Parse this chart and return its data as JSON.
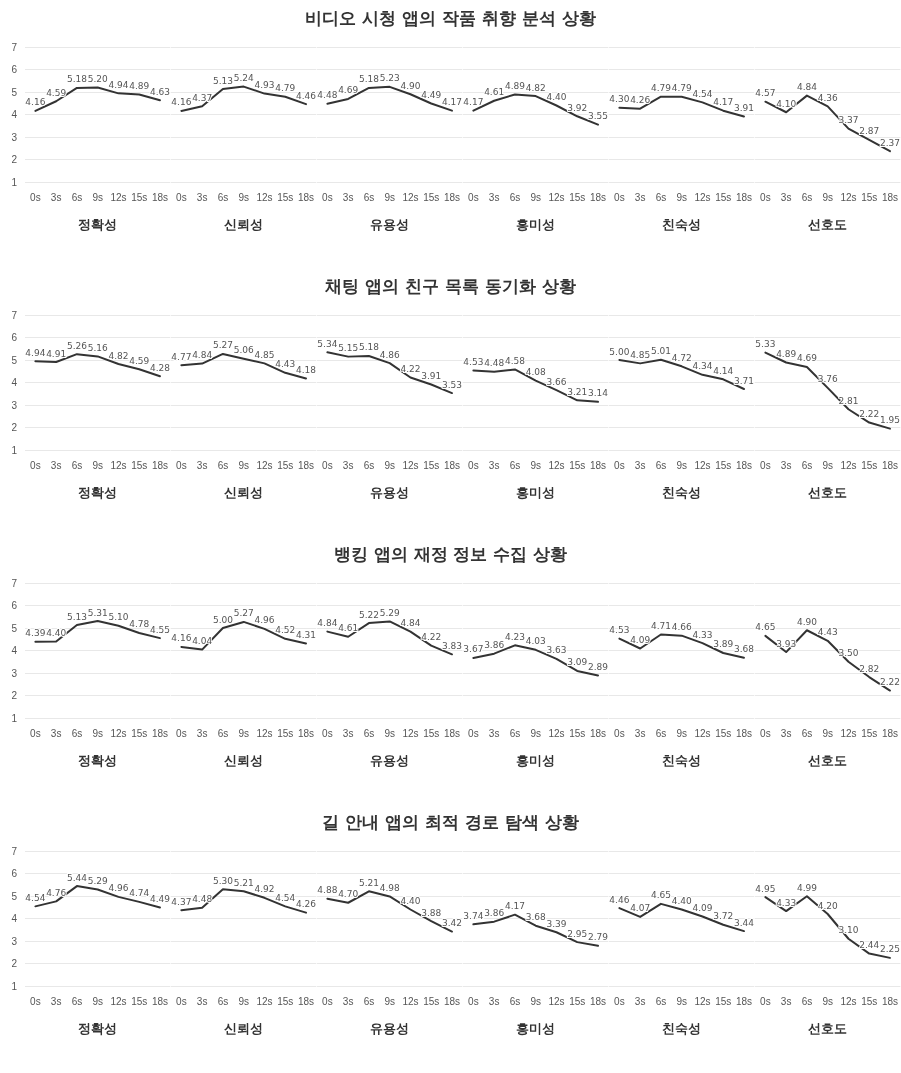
{
  "chart_data": [
    {
      "type": "other",
      "title": "비디오 시청 앱의 작품 취향 분석 상황"
    },
    {
      "type": "line",
      "xlabel": "정확성",
      "categories": [
        "0s",
        "3s",
        "6s",
        "9s",
        "12s",
        "15s",
        "18s"
      ],
      "series": [
        {
          "color": "#333333",
          "values": [
            4.16,
            4.59,
            5.18,
            5.2,
            4.94,
            4.89,
            4.63
          ],
          "value_labels": [
            "4.16",
            "4.59",
            "5.18",
            "5.20",
            "4.94",
            "4.89",
            "4.63"
          ]
        }
      ],
      "ylim": [
        1,
        7
      ],
      "yticks": [
        1,
        2,
        3,
        4,
        5,
        6,
        7
      ],
      "grid": "y",
      "marker": "none",
      "line_style": "solid"
    },
    {
      "type": "line",
      "xlabel": "신뢰성",
      "categories": [
        "0s",
        "3s",
        "6s",
        "9s",
        "12s",
        "15s",
        "18s"
      ],
      "series": [
        {
          "color": "#333333",
          "values": [
            4.16,
            4.37,
            5.13,
            5.24,
            4.93,
            4.79,
            4.46
          ],
          "value_labels": [
            "4.16",
            "4.37",
            "5.13",
            "5.24",
            "4.93",
            "4.79",
            "4.46"
          ]
        }
      ],
      "ylim": [
        1,
        7
      ],
      "yticks": [
        1,
        2,
        3,
        4,
        5,
        6,
        7
      ],
      "grid": "y",
      "tick_labels": "x",
      "marker": "none",
      "line_style": "solid"
    },
    {
      "type": "line",
      "xlabel": "유용성",
      "categories": [
        "0s",
        "3s",
        "6s",
        "9s",
        "12s",
        "15s",
        "18s"
      ],
      "series": [
        {
          "color": "#333333",
          "values": [
            4.48,
            4.69,
            5.18,
            5.23,
            4.9,
            4.49,
            4.17
          ],
          "value_labels": [
            "4.48",
            "4.69",
            "5.18",
            "5.23",
            "4.90",
            "4.49",
            "4.17"
          ]
        }
      ],
      "ylim": [
        1,
        7
      ],
      "yticks": [
        1,
        2,
        3,
        4,
        5,
        6,
        7
      ],
      "grid": "y",
      "tick_labels": "x",
      "marker": "none",
      "line_style": "solid"
    },
    {
      "type": "line",
      "xlabel": "흥미성",
      "categories": [
        "0s",
        "3s",
        "6s",
        "9s",
        "12s",
        "15s",
        "18s"
      ],
      "series": [
        {
          "color": "#333333",
          "values": [
            4.17,
            4.61,
            4.89,
            4.82,
            4.4,
            3.92,
            3.55
          ],
          "value_labels": [
            "4.17",
            "4.61",
            "4.89",
            "4.82",
            "4.40",
            "3.92",
            "3.55"
          ]
        }
      ],
      "ylim": [
        1,
        7
      ],
      "yticks": [
        1,
        2,
        3,
        4,
        5,
        6,
        7
      ],
      "grid": "y",
      "tick_labels": "x",
      "marker": "none",
      "line_style": "solid"
    },
    {
      "type": "line",
      "xlabel": "친숙성",
      "categories": [
        "0s",
        "3s",
        "6s",
        "9s",
        "12s",
        "15s",
        "18s"
      ],
      "series": [
        {
          "color": "#333333",
          "values": [
            4.3,
            4.26,
            4.79,
            4.79,
            4.54,
            4.17,
            3.91
          ],
          "value_labels": [
            "4.30",
            "4.26",
            "4.79",
            "4.79",
            "4.54",
            "4.17",
            "3.91"
          ]
        }
      ],
      "ylim": [
        1,
        7
      ],
      "yticks": [
        1,
        2,
        3,
        4,
        5,
        6,
        7
      ],
      "grid": "y",
      "tick_labels": "x",
      "marker": "none",
      "line_style": "solid"
    },
    {
      "type": "line",
      "xlabel": "선호도",
      "categories": [
        "0s",
        "3s",
        "6s",
        "9s",
        "12s",
        "15s",
        "18s"
      ],
      "series": [
        {
          "color": "#333333",
          "values": [
            4.57,
            4.1,
            4.84,
            4.36,
            3.37,
            2.87,
            2.37
          ],
          "value_labels": [
            "4.57",
            "4.10",
            "4.84",
            "4.36",
            "3.37",
            "2.87",
            "2.37"
          ]
        }
      ],
      "ylim": [
        1,
        7
      ],
      "yticks": [
        1,
        2,
        3,
        4,
        5,
        6,
        7
      ],
      "grid": "y",
      "tick_labels": "x",
      "marker": "none",
      "line_style": "solid"
    },
    {
      "type": "other",
      "title": "채팅 앱의 친구 목록 동기화 상황"
    },
    {
      "type": "line",
      "xlabel": "정확성",
      "categories": [
        "0s",
        "3s",
        "6s",
        "9s",
        "12s",
        "15s",
        "18s"
      ],
      "series": [
        {
          "color": "#333333",
          "values": [
            4.94,
            4.91,
            5.26,
            5.16,
            4.82,
            4.59,
            4.28
          ],
          "value_labels": [
            "4.94",
            "4.91",
            "5.26",
            "5.16",
            "4.82",
            "4.59",
            "4.28"
          ]
        }
      ],
      "ylim": [
        1,
        7
      ],
      "yticks": [
        1,
        2,
        3,
        4,
        5,
        6,
        7
      ],
      "grid": "y",
      "marker": "none",
      "line_style": "solid"
    },
    {
      "type": "line",
      "xlabel": "신뢰성",
      "categories": [
        "0s",
        "3s",
        "6s",
        "9s",
        "12s",
        "15s",
        "18s"
      ],
      "series": [
        {
          "color": "#333333",
          "values": [
            4.77,
            4.84,
            5.27,
            5.06,
            4.85,
            4.43,
            4.18
          ],
          "value_labels": [
            "4.77",
            "4.84",
            "5.27",
            "5.06",
            "4.85",
            "4.43",
            "4.18"
          ]
        }
      ],
      "ylim": [
        1,
        7
      ],
      "yticks": [
        1,
        2,
        3,
        4,
        5,
        6,
        7
      ],
      "grid": "y",
      "tick_labels": "x",
      "marker": "none",
      "line_style": "solid"
    },
    {
      "type": "line",
      "xlabel": "유용성",
      "categories": [
        "0s",
        "3s",
        "6s",
        "9s",
        "12s",
        "15s",
        "18s"
      ],
      "series": [
        {
          "color": "#333333",
          "values": [
            5.34,
            5.15,
            5.18,
            4.86,
            4.22,
            3.91,
            3.53
          ],
          "value_labels": [
            "5.34",
            "5.15",
            "5.18",
            "4.86",
            "4.22",
            "3.91",
            "3.53"
          ]
        }
      ],
      "ylim": [
        1,
        7
      ],
      "yticks": [
        1,
        2,
        3,
        4,
        5,
        6,
        7
      ],
      "grid": "y",
      "tick_labels": "x",
      "marker": "none",
      "line_style": "solid"
    },
    {
      "type": "line",
      "xlabel": "흥미성",
      "categories": [
        "0s",
        "3s",
        "6s",
        "9s",
        "12s",
        "15s",
        "18s"
      ],
      "series": [
        {
          "color": "#333333",
          "values": [
            4.53,
            4.48,
            4.58,
            4.08,
            3.66,
            3.21,
            3.14
          ],
          "value_labels": [
            "4.53",
            "4.48",
            "4.58",
            "4.08",
            "3.66",
            "3.21",
            "3.14"
          ]
        }
      ],
      "ylim": [
        1,
        7
      ],
      "yticks": [
        1,
        2,
        3,
        4,
        5,
        6,
        7
      ],
      "grid": "y",
      "tick_labels": "x",
      "marker": "none",
      "line_style": "solid"
    },
    {
      "type": "line",
      "xlabel": "친숙성",
      "categories": [
        "0s",
        "3s",
        "6s",
        "9s",
        "12s",
        "15s",
        "18s"
      ],
      "series": [
        {
          "color": "#333333",
          "values": [
            5.0,
            4.85,
            5.01,
            4.72,
            4.34,
            4.14,
            3.71
          ],
          "value_labels": [
            "5.00",
            "4.85",
            "5.01",
            "4.72",
            "4.34",
            "4.14",
            "3.71"
          ]
        }
      ],
      "ylim": [
        1,
        7
      ],
      "yticks": [
        1,
        2,
        3,
        4,
        5,
        6,
        7
      ],
      "grid": "y",
      "tick_labels": "x",
      "marker": "none",
      "line_style": "solid"
    },
    {
      "type": "line",
      "xlabel": "선호도",
      "categories": [
        "0s",
        "3s",
        "6s",
        "9s",
        "12s",
        "15s",
        "18s"
      ],
      "series": [
        {
          "color": "#333333",
          "values": [
            5.33,
            4.89,
            4.69,
            3.76,
            2.81,
            2.22,
            1.95
          ],
          "value_labels": [
            "5.33",
            "4.89",
            "4.69",
            "3.76",
            "2.81",
            "2.22",
            "1.95"
          ]
        }
      ],
      "ylim": [
        1,
        7
      ],
      "yticks": [
        1,
        2,
        3,
        4,
        5,
        6,
        7
      ],
      "grid": "y",
      "tick_labels": "x",
      "marker": "none",
      "line_style": "solid"
    },
    {
      "type": "other",
      "title": "뱅킹 앱의 재정 정보 수집 상황"
    },
    {
      "type": "line",
      "xlabel": "정확성",
      "categories": [
        "0s",
        "3s",
        "6s",
        "9s",
        "12s",
        "15s",
        "18s"
      ],
      "series": [
        {
          "color": "#333333",
          "values": [
            4.39,
            4.4,
            5.13,
            5.31,
            5.1,
            4.78,
            4.55
          ],
          "value_labels": [
            "4.39",
            "4.40",
            "5.13",
            "5.31",
            "5.10",
            "4.78",
            "4.55"
          ]
        }
      ],
      "ylim": [
        1,
        7
      ],
      "yticks": [
        1,
        2,
        3,
        4,
        5,
        6,
        7
      ],
      "grid": "y",
      "marker": "none",
      "line_style": "solid"
    },
    {
      "type": "line",
      "xlabel": "신뢰성",
      "categories": [
        "0s",
        "3s",
        "6s",
        "9s",
        "12s",
        "15s",
        "18s"
      ],
      "series": [
        {
          "color": "#333333",
          "values": [
            4.16,
            4.04,
            5.0,
            5.27,
            4.96,
            4.52,
            4.31
          ],
          "value_labels": [
            "4.16",
            "4.04",
            "5.00",
            "5.27",
            "4.96",
            "4.52",
            "4.31"
          ]
        }
      ],
      "ylim": [
        1,
        7
      ],
      "yticks": [
        1,
        2,
        3,
        4,
        5,
        6,
        7
      ],
      "grid": "y",
      "tick_labels": "x",
      "marker": "none",
      "line_style": "solid"
    },
    {
      "type": "line",
      "xlabel": "유용성",
      "categories": [
        "0s",
        "3s",
        "6s",
        "9s",
        "12s",
        "15s",
        "18s"
      ],
      "series": [
        {
          "color": "#333333",
          "values": [
            4.84,
            4.61,
            5.22,
            5.29,
            4.84,
            4.22,
            3.83
          ],
          "value_labels": [
            "4.84",
            "4.61",
            "5.22",
            "5.29",
            "4.84",
            "4.22",
            "3.83"
          ]
        }
      ],
      "ylim": [
        1,
        7
      ],
      "yticks": [
        1,
        2,
        3,
        4,
        5,
        6,
        7
      ],
      "grid": "y",
      "tick_labels": "x",
      "marker": "none",
      "line_style": "solid"
    },
    {
      "type": "line",
      "xlabel": "흥미성",
      "categories": [
        "0s",
        "3s",
        "6s",
        "9s",
        "12s",
        "15s",
        "18s"
      ],
      "series": [
        {
          "color": "#333333",
          "values": [
            3.67,
            3.86,
            4.23,
            4.03,
            3.63,
            3.09,
            2.89
          ],
          "value_labels": [
            "3.67",
            "3.86",
            "4.23",
            "4.03",
            "3.63",
            "3.09",
            "2.89"
          ]
        }
      ],
      "ylim": [
        1,
        7
      ],
      "yticks": [
        1,
        2,
        3,
        4,
        5,
        6,
        7
      ],
      "grid": "y",
      "tick_labels": "x",
      "marker": "none",
      "line_style": "solid"
    },
    {
      "type": "line",
      "xlabel": "친숙성",
      "categories": [
        "0s",
        "3s",
        "6s",
        "9s",
        "12s",
        "15s",
        "18s"
      ],
      "series": [
        {
          "color": "#333333",
          "values": [
            4.53,
            4.09,
            4.71,
            4.66,
            4.33,
            3.89,
            3.68
          ],
          "value_labels": [
            "4.53",
            "4.09",
            "4.71",
            "4.66",
            "4.33",
            "3.89",
            "3.68"
          ]
        }
      ],
      "ylim": [
        1,
        7
      ],
      "yticks": [
        1,
        2,
        3,
        4,
        5,
        6,
        7
      ],
      "grid": "y",
      "tick_labels": "x",
      "marker": "none",
      "line_style": "solid"
    },
    {
      "type": "line",
      "xlabel": "선호도",
      "categories": [
        "0s",
        "3s",
        "6s",
        "9s",
        "12s",
        "15s",
        "18s"
      ],
      "series": [
        {
          "color": "#333333",
          "values": [
            4.65,
            3.93,
            4.9,
            4.43,
            3.5,
            2.82,
            2.22
          ],
          "value_labels": [
            "4.65",
            "3.93",
            "4.90",
            "4.43",
            "3.50",
            "2.82",
            "2.22"
          ]
        }
      ],
      "ylim": [
        1,
        7
      ],
      "yticks": [
        1,
        2,
        3,
        4,
        5,
        6,
        7
      ],
      "grid": "y",
      "tick_labels": "x",
      "marker": "none",
      "line_style": "solid"
    },
    {
      "type": "other",
      "title": "길 안내 앱의 최적 경로 탐색 상황"
    },
    {
      "type": "line",
      "xlabel": "정확성",
      "categories": [
        "0s",
        "3s",
        "6s",
        "9s",
        "12s",
        "15s",
        "18s"
      ],
      "series": [
        {
          "color": "#333333",
          "values": [
            4.54,
            4.76,
            5.44,
            5.29,
            4.96,
            4.74,
            4.49
          ],
          "value_labels": [
            "4.54",
            "4.76",
            "5.44",
            "5.29",
            "4.96",
            "4.74",
            "4.49"
          ]
        }
      ],
      "ylim": [
        1,
        7
      ],
      "yticks": [
        1,
        2,
        3,
        4,
        5,
        6,
        7
      ],
      "grid": "y",
      "marker": "none",
      "line_style": "solid"
    },
    {
      "type": "line",
      "xlabel": "신뢰성",
      "categories": [
        "0s",
        "3s",
        "6s",
        "9s",
        "12s",
        "15s",
        "18s"
      ],
      "series": [
        {
          "color": "#333333",
          "values": [
            4.37,
            4.48,
            5.3,
            5.21,
            4.92,
            4.54,
            4.26
          ],
          "value_labels": [
            "4.37",
            "4.48",
            "5.30",
            "5.21",
            "4.92",
            "4.54",
            "4.26"
          ]
        }
      ],
      "ylim": [
        1,
        7
      ],
      "yticks": [
        1,
        2,
        3,
        4,
        5,
        6,
        7
      ],
      "grid": "y",
      "tick_labels": "x",
      "marker": "none",
      "line_style": "solid"
    },
    {
      "type": "line",
      "xlabel": "유용성",
      "categories": [
        "0s",
        "3s",
        "6s",
        "9s",
        "12s",
        "15s",
        "18s"
      ],
      "series": [
        {
          "color": "#333333",
          "values": [
            4.88,
            4.7,
            5.21,
            4.98,
            4.4,
            3.88,
            3.42
          ],
          "value_labels": [
            "4.88",
            "4.70",
            "5.21",
            "4.98",
            "4.40",
            "3.88",
            "3.42"
          ]
        }
      ],
      "ylim": [
        1,
        7
      ],
      "yticks": [
        1,
        2,
        3,
        4,
        5,
        6,
        7
      ],
      "grid": "y",
      "tick_labels": "x",
      "marker": "none",
      "line_style": "solid"
    },
    {
      "type": "line",
      "xlabel": "흥미성",
      "categories": [
        "0s",
        "3s",
        "6s",
        "9s",
        "12s",
        "15s",
        "18s"
      ],
      "series": [
        {
          "color": "#333333",
          "values": [
            3.74,
            3.86,
            4.17,
            3.68,
            3.39,
            2.95,
            2.79
          ],
          "value_labels": [
            "3.74",
            "3.86",
            "4.17",
            "3.68",
            "3.39",
            "2.95",
            "2.79"
          ]
        }
      ],
      "ylim": [
        1,
        7
      ],
      "yticks": [
        1,
        2,
        3,
        4,
        5,
        6,
        7
      ],
      "grid": "y",
      "tick_labels": "x",
      "marker": "none",
      "line_style": "solid"
    },
    {
      "type": "line",
      "xlabel": "친숙성",
      "categories": [
        "0s",
        "3s",
        "6s",
        "9s",
        "12s",
        "15s",
        "18s"
      ],
      "series": [
        {
          "color": "#333333",
          "values": [
            4.46,
            4.07,
            4.65,
            4.4,
            4.09,
            3.72,
            3.44
          ],
          "value_labels": [
            "4.46",
            "4.07",
            "4.65",
            "4.40",
            "4.09",
            "3.72",
            "3.44"
          ]
        }
      ],
      "ylim": [
        1,
        7
      ],
      "yticks": [
        1,
        2,
        3,
        4,
        5,
        6,
        7
      ],
      "grid": "y",
      "tick_labels": "x",
      "marker": "none",
      "line_style": "solid"
    },
    {
      "type": "line",
      "xlabel": "선호도",
      "categories": [
        "0s",
        "3s",
        "6s",
        "9s",
        "12s",
        "15s",
        "18s"
      ],
      "series": [
        {
          "color": "#333333",
          "values": [
            4.95,
            4.33,
            4.99,
            4.2,
            3.1,
            2.44,
            2.25
          ],
          "value_labels": [
            "4.95",
            "4.33",
            "4.99",
            "4.20",
            "3.10",
            "2.44",
            "2.25"
          ]
        }
      ],
      "ylim": [
        1,
        7
      ],
      "yticks": [
        1,
        2,
        3,
        4,
        5,
        6,
        7
      ],
      "grid": "y",
      "tick_labels": "x",
      "marker": "none",
      "line_style": "solid"
    }
  ]
}
